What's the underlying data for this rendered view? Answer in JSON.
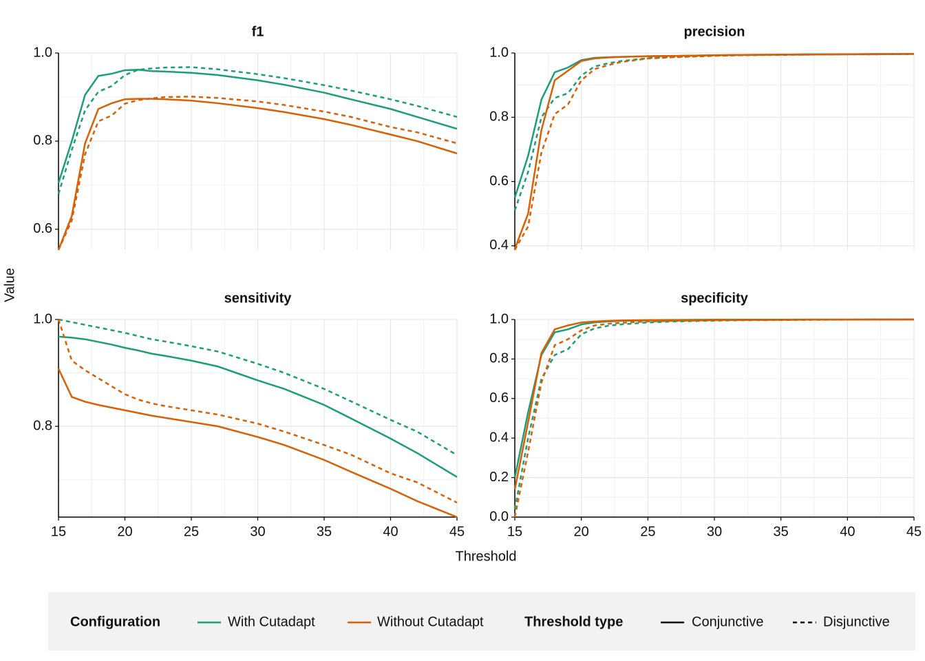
{
  "axis_labels": {
    "x": "Threshold",
    "y": "Value"
  },
  "legend": {
    "groups": [
      {
        "title": "Configuration",
        "entries": [
          {
            "label": "With Cutadapt",
            "color": "#1b9e77"
          },
          {
            "label": "Without Cutadapt",
            "color": "#d95f02"
          }
        ]
      },
      {
        "title": "Threshold type",
        "entries": [
          {
            "label": "Conjunctive",
            "dash": "solid"
          },
          {
            "label": "Disjunctive",
            "dash": "dashed"
          }
        ]
      }
    ]
  },
  "chart_data": [
    {
      "type": "line",
      "title": "f1",
      "grid": true,
      "x": [
        15,
        16,
        17,
        18,
        19,
        20,
        21,
        22,
        23,
        25,
        27,
        30,
        32,
        35,
        37,
        40,
        42,
        45
      ],
      "xlim": [
        15,
        45
      ],
      "xticks": [
        15,
        20,
        25,
        30,
        35,
        40,
        45
      ],
      "ylim": [
        0.553,
        1.0
      ],
      "yticks": [
        0.6,
        0.8,
        {
          "value": 1,
          "label": "1.0"
        }
      ],
      "series": [
        {
          "color": "#1b9e77",
          "dash": "solid",
          "values": [
            0.705,
            0.8,
            0.905,
            0.948,
            0.953,
            0.961,
            0.962,
            0.959,
            0.958,
            0.955,
            0.95,
            0.938,
            0.928,
            0.91,
            0.895,
            0.873,
            0.855,
            0.828
          ]
        },
        {
          "color": "#1b9e77",
          "dash": "dashed",
          "values": [
            0.68,
            0.78,
            0.87,
            0.912,
            0.925,
            0.95,
            0.962,
            0.965,
            0.967,
            0.968,
            0.963,
            0.952,
            0.943,
            0.927,
            0.915,
            0.895,
            0.88,
            0.855
          ]
        },
        {
          "color": "#d95f02",
          "dash": "solid",
          "values": [
            0.553,
            0.63,
            0.795,
            0.873,
            0.886,
            0.895,
            0.896,
            0.896,
            0.895,
            0.892,
            0.886,
            0.875,
            0.866,
            0.85,
            0.837,
            0.815,
            0.8,
            0.772
          ]
        },
        {
          "color": "#d95f02",
          "dash": "dashed",
          "values": [
            0.553,
            0.62,
            0.77,
            0.845,
            0.858,
            0.885,
            0.893,
            0.897,
            0.9,
            0.901,
            0.898,
            0.89,
            0.882,
            0.867,
            0.855,
            0.832,
            0.82,
            0.795
          ]
        }
      ]
    },
    {
      "type": "line",
      "title": "precision",
      "grid": true,
      "x": [
        15,
        16,
        17,
        18,
        19,
        20,
        21,
        22,
        23,
        25,
        27,
        30,
        32,
        35,
        37,
        40,
        42,
        45
      ],
      "xlim": [
        15,
        45
      ],
      "xticks": [
        15,
        20,
        25,
        30,
        35,
        40,
        45
      ],
      "ylim": [
        0.387,
        1.0
      ],
      "yticks": [
        0.4,
        0.6,
        0.8,
        {
          "value": 1,
          "label": "1.0"
        }
      ],
      "series": [
        {
          "color": "#1b9e77",
          "dash": "solid",
          "values": [
            0.55,
            0.68,
            0.855,
            0.94,
            0.955,
            0.978,
            0.985,
            0.987,
            0.988,
            0.99,
            0.991,
            0.993,
            0.994,
            0.995,
            0.996,
            0.996,
            0.997,
            0.997
          ]
        },
        {
          "color": "#1b9e77",
          "dash": "dashed",
          "values": [
            0.51,
            0.63,
            0.8,
            0.86,
            0.875,
            0.93,
            0.958,
            0.968,
            0.975,
            0.984,
            0.988,
            0.992,
            0.993,
            0.995,
            0.995,
            0.996,
            0.996,
            0.997
          ]
        },
        {
          "color": "#d95f02",
          "dash": "solid",
          "values": [
            0.39,
            0.5,
            0.76,
            0.915,
            0.945,
            0.975,
            0.983,
            0.986,
            0.988,
            0.99,
            0.991,
            0.993,
            0.994,
            0.995,
            0.995,
            0.996,
            0.996,
            0.997
          ]
        },
        {
          "color": "#d95f02",
          "dash": "dashed",
          "values": [
            0.387,
            0.46,
            0.69,
            0.81,
            0.84,
            0.915,
            0.95,
            0.962,
            0.972,
            0.983,
            0.987,
            0.991,
            0.993,
            0.994,
            0.995,
            0.996,
            0.996,
            0.997
          ]
        }
      ]
    },
    {
      "type": "line",
      "title": "sensitivity",
      "grid": true,
      "x": [
        15,
        16,
        17,
        18,
        19,
        20,
        21,
        22,
        23,
        25,
        27,
        30,
        32,
        35,
        37,
        40,
        42,
        45
      ],
      "xlim": [
        15,
        45
      ],
      "xticks": [
        15,
        20,
        25,
        30,
        35,
        40,
        45
      ],
      "ylim": [
        0.63,
        1.0
      ],
      "yticks": [
        0.8,
        {
          "value": 1,
          "label": "1.0"
        }
      ],
      "series": [
        {
          "color": "#1b9e77",
          "dash": "solid",
          "values": [
            0.968,
            0.966,
            0.963,
            0.958,
            0.953,
            0.947,
            0.942,
            0.936,
            0.932,
            0.923,
            0.912,
            0.886,
            0.87,
            0.84,
            0.815,
            0.777,
            0.75,
            0.705
          ]
        },
        {
          "color": "#1b9e77",
          "dash": "dashed",
          "values": [
            1.0,
            0.995,
            0.99,
            0.985,
            0.98,
            0.975,
            0.969,
            0.963,
            0.959,
            0.95,
            0.94,
            0.917,
            0.9,
            0.87,
            0.847,
            0.812,
            0.79,
            0.746
          ]
        },
        {
          "color": "#d95f02",
          "dash": "solid",
          "values": [
            0.908,
            0.855,
            0.846,
            0.84,
            0.835,
            0.83,
            0.825,
            0.82,
            0.816,
            0.808,
            0.8,
            0.78,
            0.765,
            0.737,
            0.715,
            0.683,
            0.66,
            0.63
          ]
        },
        {
          "color": "#d95f02",
          "dash": "dashed",
          "values": [
            1.0,
            0.923,
            0.905,
            0.89,
            0.875,
            0.86,
            0.85,
            0.843,
            0.838,
            0.83,
            0.822,
            0.805,
            0.79,
            0.765,
            0.747,
            0.712,
            0.695,
            0.657
          ]
        }
      ]
    },
    {
      "type": "line",
      "title": "specificity",
      "grid": true,
      "x": [
        15,
        16,
        17,
        18,
        19,
        20,
        21,
        22,
        23,
        25,
        27,
        30,
        32,
        35,
        37,
        40,
        42,
        45
      ],
      "xlim": [
        15,
        45
      ],
      "xticks": [
        15,
        20,
        25,
        30,
        35,
        40,
        45
      ],
      "ylim": [
        0,
        1.0
      ],
      "yticks": [
        {
          "value": 0,
          "label": "0.0"
        },
        0.2,
        0.4,
        0.6,
        0.8,
        {
          "value": 1,
          "label": "1.0"
        }
      ],
      "series": [
        {
          "color": "#1b9e77",
          "dash": "solid",
          "values": [
            0.2,
            0.53,
            0.82,
            0.935,
            0.95,
            0.975,
            0.985,
            0.99,
            0.993,
            0.995,
            0.997,
            0.998,
            0.998,
            0.999,
            0.999,
            0.999,
            1.0,
            1.0
          ]
        },
        {
          "color": "#1b9e77",
          "dash": "dashed",
          "values": [
            0.04,
            0.4,
            0.7,
            0.82,
            0.85,
            0.925,
            0.955,
            0.968,
            0.975,
            0.985,
            0.99,
            0.994,
            0.996,
            0.997,
            0.998,
            0.999,
            0.999,
            1.0
          ]
        },
        {
          "color": "#d95f02",
          "dash": "solid",
          "values": [
            0.14,
            0.48,
            0.83,
            0.95,
            0.97,
            0.985,
            0.99,
            0.993,
            0.995,
            0.997,
            0.998,
            0.999,
            0.999,
            0.999,
            1.0,
            1.0,
            1.0,
            1.0
          ]
        },
        {
          "color": "#d95f02",
          "dash": "dashed",
          "values": [
            0.0,
            0.33,
            0.68,
            0.87,
            0.9,
            0.945,
            0.97,
            0.978,
            0.983,
            0.99,
            0.993,
            0.996,
            0.997,
            0.998,
            0.999,
            0.999,
            1.0,
            1.0
          ]
        }
      ]
    }
  ]
}
